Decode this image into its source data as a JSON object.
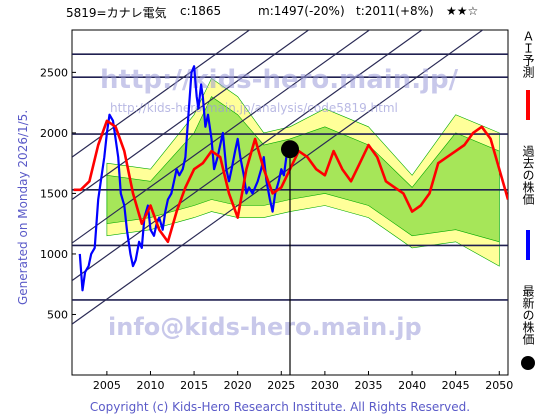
{
  "header": {
    "code_name": "5819=カナレ電気",
    "current": "c:1865",
    "medium": "m:1497(-20%)",
    "target": "t:2011(+8%)",
    "stars": "★★☆"
  },
  "side_label": "Generated on Monday 2026/1/5.",
  "footer": "Copyright (c) Kids-Hero Research Institute. All Rights Reserved.",
  "watermarks": {
    "url": "http://kids-hero.main.jp/",
    "sub_url": "http://kids-hero.main.jp/analysis/code5819.html",
    "email": "info@kids-hero.main.jp"
  },
  "legend": [
    {
      "label": "ＡＩ予測",
      "color": "#ff0000"
    },
    {
      "label": "過去の株価",
      "color": "#0000ff"
    },
    {
      "label": "最新の株価",
      "color": "#000000"
    }
  ],
  "colors": {
    "ai": "#ff0000",
    "past": "#0000ff",
    "band_light": "#ffff99",
    "band_green": "#88dd44",
    "band_line": "#00aa00",
    "hline": "#202050",
    "channel": "#2a2a55"
  },
  "chart_data": {
    "type": "line",
    "xlim": [
      2001,
      2051
    ],
    "ylim": [
      0,
      2850
    ],
    "x_ticks": [
      2005,
      2010,
      2015,
      2020,
      2025,
      2030,
      2035,
      2040,
      2045,
      2050
    ],
    "y_ticks": [
      500,
      1000,
      1500,
      2000,
      2500
    ],
    "horizontal_levels": [
      620,
      1070,
      1530,
      1990,
      2460,
      2650
    ],
    "series": [
      {
        "key": "past",
        "x": [
          2001.9,
          2002.2,
          2002.5,
          2002.9,
          2003.2,
          2003.6,
          2004.0,
          2004.3,
          2004.7,
          2005.0,
          2005.3,
          2005.7,
          2006.0,
          2006.3,
          2006.6,
          2007.0,
          2007.3,
          2007.7,
          2008.0,
          2008.3,
          2008.7,
          2009.0,
          2009.3,
          2009.7,
          2010.0,
          2010.4,
          2010.7,
          2011.0,
          2011.4,
          2011.7,
          2012.0,
          2012.4,
          2012.7,
          2013.0,
          2013.3,
          2013.7,
          2014.0,
          2014.3,
          2014.7,
          2015.0,
          2015.3,
          2015.5,
          2015.8,
          2016.0,
          2016.3,
          2016.6,
          2017.0,
          2017.3,
          2017.7,
          2018.0,
          2018.3,
          2018.7,
          2019.0,
          2019.3,
          2019.7,
          2020.0,
          2020.3,
          2020.7,
          2021.0,
          2021.3,
          2021.7,
          2022.0,
          2022.3,
          2022.7,
          2023.0,
          2023.3,
          2023.7,
          2024.0,
          2024.3,
          2024.7,
          2025.0,
          2025.3,
          2025.7
        ],
        "y": [
          1000,
          700,
          850,
          900,
          1000,
          1050,
          1450,
          1600,
          1800,
          2000,
          2150,
          2100,
          1950,
          1800,
          1500,
          1400,
          1200,
          1000,
          900,
          950,
          1100,
          1050,
          1300,
          1400,
          1200,
          1150,
          1250,
          1300,
          1200,
          1350,
          1450,
          1500,
          1600,
          1700,
          1650,
          1700,
          1800,
          2100,
          2500,
          2550,
          2300,
          2200,
          2400,
          2300,
          2050,
          2150,
          1950,
          1700,
          1800,
          1900,
          2000,
          1700,
          1600,
          1700,
          1850,
          1950,
          1800,
          1650,
          1500,
          1550,
          1500,
          1550,
          1600,
          1700,
          1800,
          1600,
          1450,
          1350,
          1500,
          1600,
          1700,
          1650,
          1865
        ]
      },
      {
        "key": "ai",
        "x": [
          2001.2,
          2002.0,
          2003.0,
          2004.0,
          2005.0,
          2006.0,
          2007.0,
          2008.0,
          2009.0,
          2010.0,
          2011.0,
          2012.0,
          2013.0,
          2014.0,
          2015.0,
          2016.0,
          2017.0,
          2018.0,
          2019.0,
          2020.0,
          2021.0,
          2022.0,
          2023.0,
          2024.0,
          2025.0,
          2026.0,
          2027.0,
          2028.0,
          2029.0,
          2030.0,
          2031.0,
          2032.0,
          2033.0,
          2034.0,
          2035.0,
          2036.0,
          2037.0,
          2038.0,
          2039.0,
          2040.0,
          2041.0,
          2042.0,
          2043.0,
          2044.0,
          2045.0,
          2046.0,
          2047.0,
          2048.0,
          2049.0,
          2050.0,
          2051.0
        ],
        "y": [
          1530,
          1530,
          1600,
          1900,
          2100,
          2050,
          1850,
          1500,
          1250,
          1400,
          1200,
          1100,
          1350,
          1550,
          1700,
          1750,
          1850,
          1800,
          1500,
          1300,
          1700,
          1950,
          1700,
          1500,
          1550,
          1700,
          1850,
          1800,
          1700,
          1650,
          1850,
          1700,
          1600,
          1750,
          1900,
          1800,
          1600,
          1550,
          1500,
          1350,
          1400,
          1500,
          1750,
          1800,
          1850,
          1900,
          2000,
          2050,
          1950,
          1700,
          1450
        ]
      }
    ],
    "latest_point": {
      "x": 2026.0,
      "y": 1865
    },
    "channels": [
      {
        "x": [
          2001,
          2051
        ],
        "y": [
          420,
          3000
        ]
      },
      {
        "x": [
          2001,
          2051
        ],
        "y": [
          780,
          3360
        ]
      },
      {
        "x": [
          2001,
          2051
        ],
        "y": [
          1090,
          3670
        ]
      },
      {
        "x": [
          2001,
          2051
        ],
        "y": [
          1450,
          4030
        ]
      },
      {
        "x": [
          2001,
          2051
        ],
        "y": [
          1800,
          4380
        ]
      }
    ],
    "outer_band": {
      "x": [
        2005,
        2010,
        2015,
        2017,
        2020,
        2023,
        2026,
        2030,
        2035,
        2040,
        2045,
        2050
      ],
      "upper": [
        1750,
        1700,
        2150,
        2450,
        2300,
        2000,
        2050,
        2200,
        2050,
        1650,
        2150,
        2000
      ],
      "lower": [
        1150,
        1200,
        1300,
        1350,
        1300,
        1300,
        1350,
        1400,
        1300,
        1050,
        1100,
        900
      ]
    },
    "inner_band": {
      "x": [
        2005,
        2010,
        2015,
        2017,
        2020,
        2023,
        2026,
        2030,
        2035,
        2040,
        2045,
        2050
      ],
      "upper": [
        1650,
        1600,
        2000,
        2300,
        2150,
        1900,
        1950,
        2050,
        1900,
        1550,
        2000,
        1850
      ],
      "lower": [
        1250,
        1300,
        1400,
        1450,
        1400,
        1400,
        1450,
        1500,
        1400,
        1150,
        1200,
        1100
      ]
    }
  }
}
